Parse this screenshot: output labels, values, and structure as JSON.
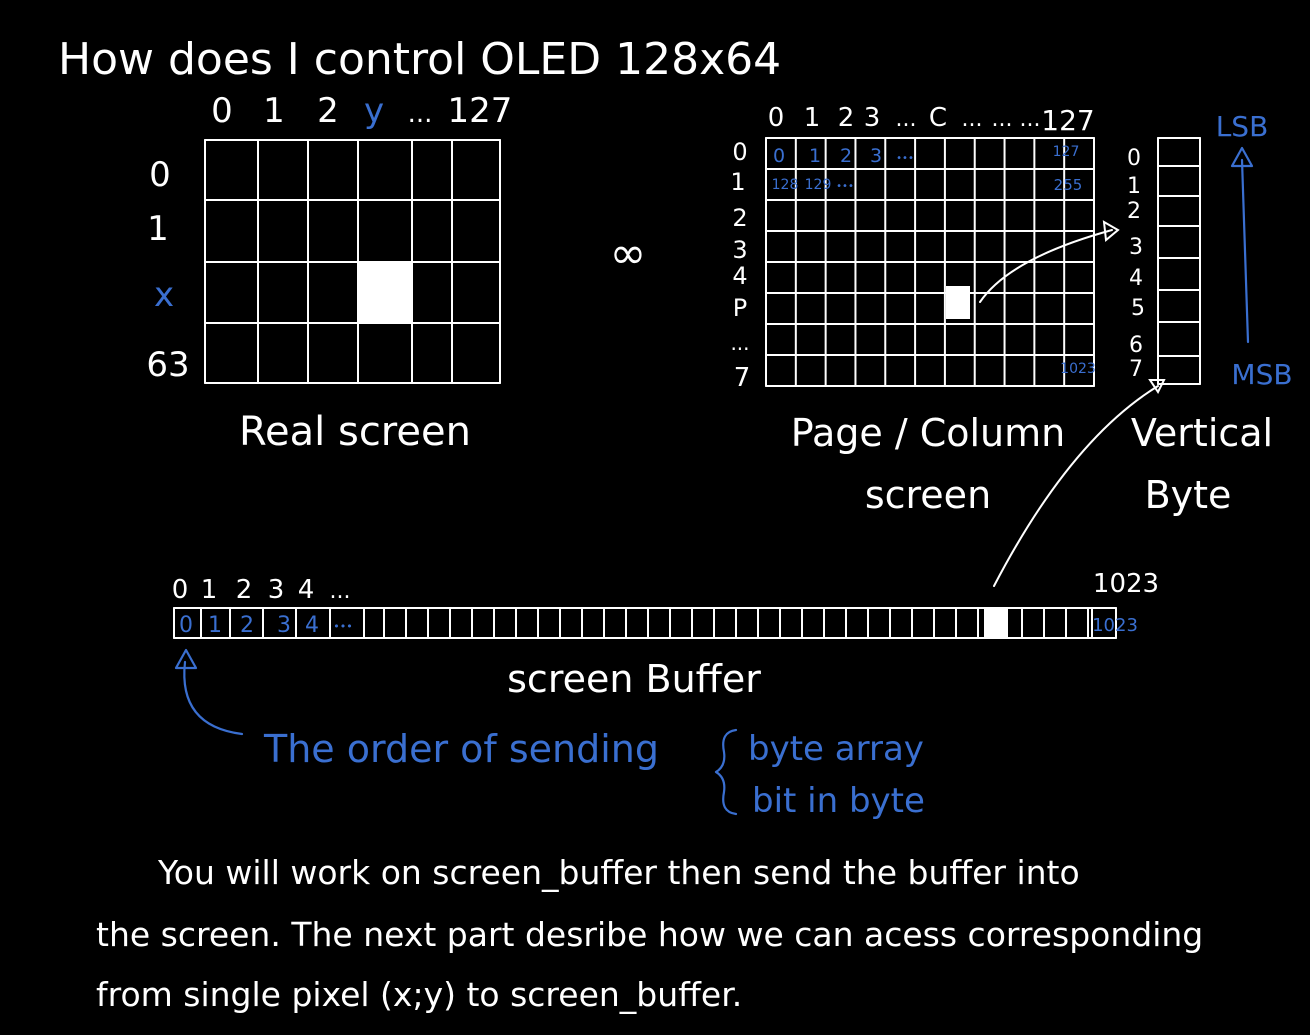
{
  "title": "How does I control OLED  128x64",
  "real_screen": {
    "col_labels": [
      "0",
      "1",
      "2",
      "y",
      "...",
      "127"
    ],
    "row_labels": [
      "0",
      "1",
      "x",
      "63"
    ],
    "caption": "Real screen"
  },
  "equivalence_symbol": "∞",
  "page_screen": {
    "col_labels": [
      "0",
      "1",
      "2",
      "3",
      "...",
      "C",
      "...",
      "...",
      "...",
      "127"
    ],
    "row_labels": [
      "0",
      "1",
      "2",
      "3",
      "4",
      "P",
      "...",
      "7"
    ],
    "cell_labels_row0": [
      "0",
      "1",
      "2",
      "3",
      "•••"
    ],
    "cell_label_row0_end": "127",
    "cell_labels_row1": [
      "128",
      "129",
      "•••"
    ],
    "cell_label_row1_end": "255",
    "cell_label_last": "1023",
    "caption_line1": "Page / Column",
    "caption_line2": "screen"
  },
  "vertical_byte": {
    "bit_labels": [
      "0",
      "1",
      "2",
      "3",
      "4",
      "5",
      "6",
      "7"
    ],
    "lsb_label": "LSB",
    "msb_label": "MSB",
    "caption_line1": "Vertical",
    "caption_line2": "Byte"
  },
  "screen_buffer": {
    "index_labels": [
      "0",
      "1",
      "2",
      "3",
      "4",
      "..."
    ],
    "index_end": "1023",
    "cell_labels": [
      "0",
      "1",
      "2",
      "3",
      "4",
      "•••"
    ],
    "cell_label_end": "1023",
    "caption": "screen Buffer"
  },
  "sending_order": {
    "label": "The order of sending",
    "item1": "byte array",
    "item2": "bit in byte"
  },
  "paragraph": {
    "line1": "You will work on screen_buffer then send the buffer into",
    "line2": "the screen. The next part desribe how we can acess corresponding",
    "line3": "from single pixel (x;y) to screen_buffer."
  },
  "colors": {
    "background": "#000000",
    "ink": "#ffffff",
    "accent": "#3a6fd0"
  }
}
